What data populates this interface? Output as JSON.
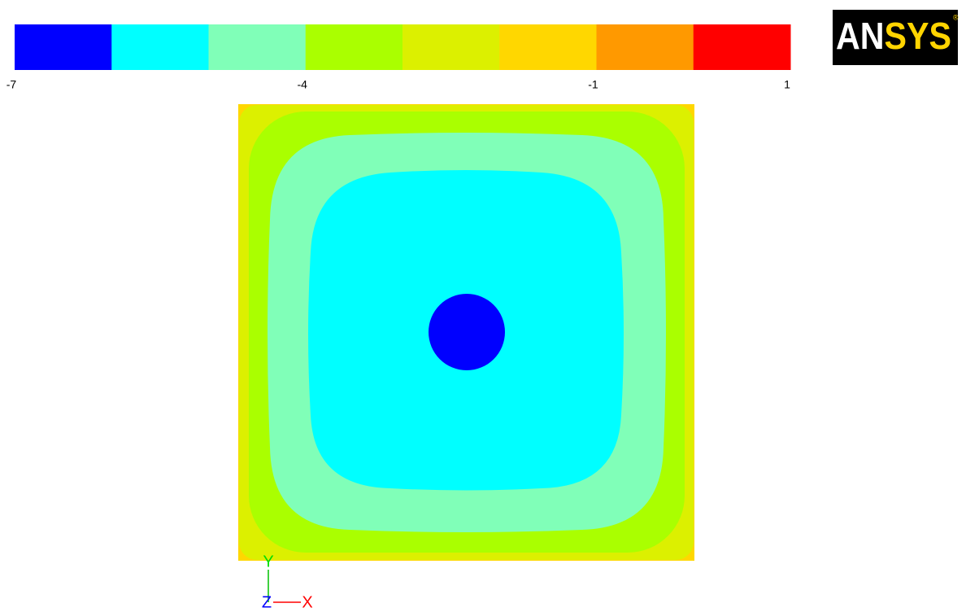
{
  "colorbar": {
    "range": [
      -7,
      1
    ],
    "ticks": [
      -7,
      -4,
      -1,
      1
    ],
    "colors": [
      "#0000ff",
      "#00ffff",
      "#80ffb8",
      "#aaff00",
      "#dcf000",
      "#ffd700",
      "#ff9900",
      "#ff0000"
    ]
  },
  "logo": [
    "AN",
    "SYS",
    "®"
  ],
  "triad": {
    "y": "Y",
    "z": "Z",
    "x": "X"
  }
}
